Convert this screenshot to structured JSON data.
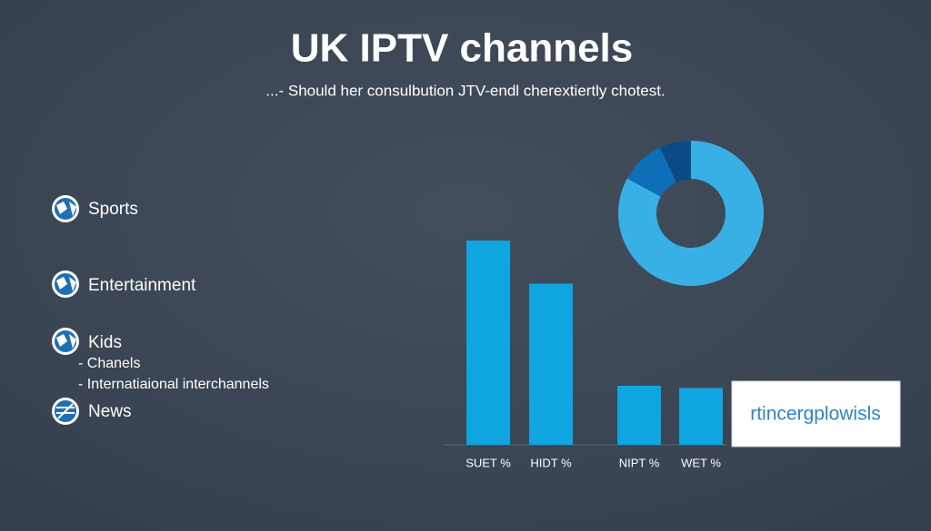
{
  "title": "UK IPTV channels",
  "subtitle": "...- Should her consulbution JTV-endl cherextiertly chotest.",
  "list": [
    {
      "label": "Sports"
    },
    {
      "label": "Entertainment"
    },
    {
      "label": "Kids",
      "items": [
        "- Chanels",
        "- Internatiaional interchannels"
      ]
    },
    {
      "label": "News"
    }
  ],
  "chart_data": [
    {
      "type": "bar",
      "categories": [
        "SUET %",
        "HIDT %",
        "NIPT %",
        "WET %"
      ],
      "values": [
        45,
        35.5,
        13,
        12.5
      ],
      "color": "#0ea5e0",
      "annotation": "rtincergplowisls"
    },
    {
      "type": "pie",
      "values": [
        83,
        10,
        7
      ],
      "colors": [
        "#38b0e6",
        "#0d6fb8",
        "#0a4a85"
      ]
    }
  ]
}
